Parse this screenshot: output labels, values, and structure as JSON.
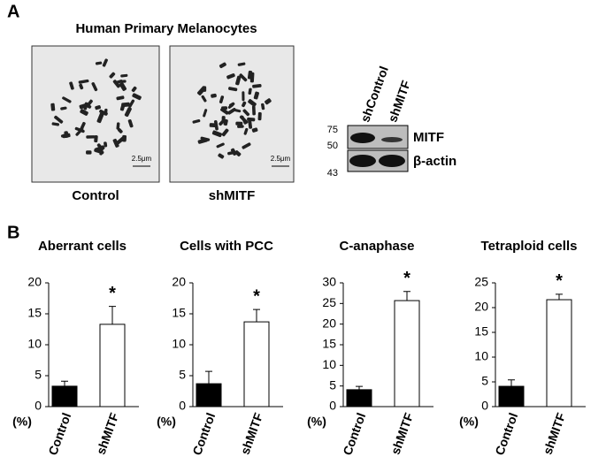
{
  "panel_a": {
    "label": "A",
    "title": "Human Primary Melanocytes",
    "micrographs": [
      {
        "label": "Control",
        "scale_bar": "2.5μm"
      },
      {
        "label": "shMITF",
        "scale_bar": "2.5μm"
      }
    ],
    "blot": {
      "lanes": [
        "shControl",
        "shMITF"
      ],
      "markers": [
        "75",
        "50",
        "43"
      ],
      "proteins": [
        "MITF",
        "β-actin"
      ]
    }
  },
  "panel_b": {
    "label": "B"
  },
  "chart_data": [
    {
      "type": "bar",
      "title": "Aberrant cells",
      "y_label": "(%)",
      "categories": [
        "Control",
        "shMITF"
      ],
      "values": [
        3.3,
        13.3
      ],
      "errors": [
        0.8,
        2.9
      ],
      "colors": [
        "#000000",
        "#ffffff"
      ],
      "ylim": [
        0,
        20
      ],
      "yticks": [
        0,
        5,
        10,
        15,
        20
      ],
      "annotation": "*"
    },
    {
      "type": "bar",
      "title": "Cells with PCC",
      "y_label": "(%)",
      "categories": [
        "Control",
        "shMITF"
      ],
      "values": [
        3.7,
        13.7
      ],
      "errors": [
        2.0,
        2.0
      ],
      "colors": [
        "#000000",
        "#ffffff"
      ],
      "ylim": [
        0,
        20
      ],
      "yticks": [
        0,
        5,
        10,
        15,
        20
      ],
      "annotation": "*"
    },
    {
      "type": "bar",
      "title": "C-anaphase",
      "y_label": "(%)",
      "categories": [
        "Control",
        "shMITF"
      ],
      "values": [
        4.1,
        25.7
      ],
      "errors": [
        0.8,
        2.2
      ],
      "colors": [
        "#000000",
        "#ffffff"
      ],
      "ylim": [
        0,
        30
      ],
      "yticks": [
        0,
        5,
        10,
        15,
        20,
        25,
        30
      ],
      "annotation": "*"
    },
    {
      "type": "bar",
      "title": "Tetraploid cells",
      "y_label": "(%)",
      "categories": [
        "Control",
        "shMITF"
      ],
      "values": [
        4.1,
        21.6
      ],
      "errors": [
        1.3,
        1.1
      ],
      "colors": [
        "#000000",
        "#ffffff"
      ],
      "ylim": [
        0,
        25
      ],
      "yticks": [
        0,
        5,
        10,
        15,
        20,
        25
      ],
      "annotation": "*"
    }
  ]
}
